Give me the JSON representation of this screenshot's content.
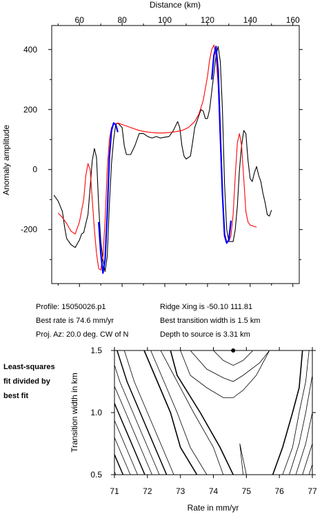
{
  "chart_data": [
    {
      "type": "line",
      "xlabel": "Distance (km)",
      "ylabel": "Anomaly amplitude",
      "xlim": [
        47,
        163
      ],
      "ylim": [
        -380,
        480
      ],
      "x_ticks": [
        60,
        80,
        100,
        120,
        140,
        160
      ],
      "y_ticks": [
        -200,
        0,
        200,
        400
      ],
      "grid": false,
      "series": [
        {
          "color": "#000000",
          "points": [
            [
              48,
              -85
            ],
            [
              50,
              -105
            ],
            [
              52,
              -140
            ],
            [
              53,
              -190
            ],
            [
              54,
              -230
            ],
            [
              56,
              -250
            ],
            [
              58,
              -260
            ],
            [
              60,
              -235
            ],
            [
              61,
              -215
            ],
            [
              62,
              -210
            ],
            [
              63,
              -180
            ],
            [
              64,
              -150
            ],
            [
              65,
              -60
            ],
            [
              66,
              30
            ],
            [
              67,
              70
            ],
            [
              68,
              40
            ],
            [
              69,
              -120
            ],
            [
              70,
              -240
            ],
            [
              71,
              -300
            ],
            [
              72,
              -340
            ],
            [
              73,
              -290
            ],
            [
              74,
              -120
            ],
            [
              75,
              20
            ],
            [
              76,
              100
            ],
            [
              77,
              150
            ],
            [
              78,
              155
            ],
            [
              80,
              140
            ],
            [
              81,
              80
            ],
            [
              82,
              50
            ],
            [
              84,
              50
            ],
            [
              86,
              80
            ],
            [
              88,
              120
            ],
            [
              90,
              120
            ],
            [
              92,
              110
            ],
            [
              94,
              105
            ],
            [
              96,
              110
            ],
            [
              98,
              105
            ],
            [
              100,
              108
            ],
            [
              102,
              110
            ],
            [
              104,
              130
            ],
            [
              106,
              160
            ],
            [
              107,
              140
            ],
            [
              108,
              80
            ],
            [
              109,
              45
            ],
            [
              110,
              35
            ],
            [
              112,
              45
            ],
            [
              113,
              90
            ],
            [
              114,
              140
            ],
            [
              116,
              180
            ],
            [
              117,
              200
            ],
            [
              118,
              195
            ],
            [
              119,
              170
            ],
            [
              120,
              170
            ],
            [
              121,
              200
            ],
            [
              122,
              260
            ],
            [
              123,
              320
            ],
            [
              124,
              380
            ],
            [
              125,
              410
            ],
            [
              126,
              360
            ],
            [
              127,
              200
            ],
            [
              128,
              -50
            ],
            [
              129,
              -200
            ],
            [
              130,
              -240
            ],
            [
              132,
              -240
            ],
            [
              133,
              -200
            ],
            [
              134,
              -120
            ],
            [
              135,
              0
            ],
            [
              136,
              80
            ],
            [
              137,
              130
            ],
            [
              138,
              120
            ],
            [
              139,
              30
            ],
            [
              140,
              -30
            ],
            [
              141,
              -40
            ],
            [
              142,
              -10
            ],
            [
              143,
              10
            ],
            [
              144,
              -20
            ],
            [
              145,
              -40
            ],
            [
              146,
              -80
            ],
            [
              147,
              -110
            ],
            [
              148,
              -150
            ],
            [
              149,
              -155
            ],
            [
              150,
              -135
            ]
          ]
        },
        {
          "color": "#ff0000",
          "points": [
            [
              50,
              -145
            ],
            [
              52,
              -160
            ],
            [
              54,
              -180
            ],
            [
              56,
              -205
            ],
            [
              58,
              -215
            ],
            [
              60,
              -175
            ],
            [
              62,
              -100
            ],
            [
              63,
              -20
            ],
            [
              64,
              20
            ],
            [
              65,
              0
            ],
            [
              66,
              -100
            ],
            [
              67,
              -200
            ],
            [
              68,
              -280
            ],
            [
              69,
              -330
            ],
            [
              70,
              -335
            ],
            [
              71,
              -290
            ],
            [
              72,
              -170
            ],
            [
              73,
              0
            ],
            [
              74,
              100
            ],
            [
              75,
              140
            ],
            [
              76,
              150
            ],
            [
              78,
              155
            ],
            [
              80,
              150
            ],
            [
              84,
              140
            ],
            [
              88,
              130
            ],
            [
              92,
              125
            ],
            [
              96,
              122
            ],
            [
              100,
              122
            ],
            [
              104,
              125
            ],
            [
              108,
              130
            ],
            [
              111,
              140
            ],
            [
              114,
              160
            ],
            [
              116,
              185
            ],
            [
              118,
              230
            ],
            [
              120,
              310
            ],
            [
              121,
              365
            ],
            [
              122,
              400
            ],
            [
              123,
              415
            ],
            [
              124,
              380
            ],
            [
              125,
              280
            ],
            [
              126,
              80
            ],
            [
              127,
              -100
            ],
            [
              128,
              -210
            ],
            [
              129,
              -240
            ],
            [
              130,
              -240
            ],
            [
              131,
              -220
            ],
            [
              132,
              -150
            ],
            [
              133,
              -20
            ],
            [
              134,
              90
            ],
            [
              135,
              120
            ],
            [
              136,
              80
            ],
            [
              137,
              -30
            ],
            [
              138,
              -140
            ],
            [
              139,
              -175
            ],
            [
              140,
              -185
            ],
            [
              142,
              -190
            ],
            [
              143,
              -192
            ]
          ]
        },
        {
          "color": "#0000ff",
          "points": [
            [
              69,
              -175
            ],
            [
              70,
              -280
            ],
            [
              71,
              -345
            ],
            [
              72,
              -300
            ],
            [
              73,
              -150
            ],
            [
              74,
              40
            ],
            [
              75,
              130
            ],
            [
              76,
              155
            ],
            [
              77,
              150
            ],
            [
              78,
              125
            ]
          ]
        },
        {
          "color": "#0000ff",
          "points": [
            [
              122,
              300
            ],
            [
              123,
              380
            ],
            [
              124,
              410
            ],
            [
              125,
              330
            ],
            [
              126,
              120
            ],
            [
              127,
              -80
            ],
            [
              128,
              -220
            ],
            [
              129,
              -245
            ],
            [
              130,
              -235
            ],
            [
              131,
              -170
            ]
          ]
        }
      ]
    },
    {
      "type": "contour",
      "xlabel": "Rate in mm/yr",
      "ylabel": "Transition width in km",
      "xlim": [
        71,
        77
      ],
      "ylim": [
        0.5,
        1.5
      ],
      "x_ticks": [
        71,
        72,
        73,
        74,
        75,
        76,
        77
      ],
      "y_ticks": [
        0.5,
        1.0,
        1.5
      ],
      "best_fit_marker": {
        "x": 74.6,
        "y": 1.5
      },
      "contours": [
        {
          "bold": true,
          "points": [
            [
              73.5,
              0.5
            ],
            [
              73.0,
              0.72
            ],
            [
              72.7,
              1.0
            ],
            [
              72.3,
              1.25
            ],
            [
              71.9,
              1.5
            ]
          ]
        },
        {
          "bold": false,
          "points": [
            [
              73.8,
              0.5
            ],
            [
              73.3,
              0.72
            ],
            [
              72.9,
              1.0
            ],
            [
              72.5,
              1.25
            ],
            [
              72.1,
              1.5
            ]
          ]
        },
        {
          "bold": true,
          "points": [
            [
              74.6,
              0.5
            ],
            [
              74.2,
              0.72
            ],
            [
              73.6,
              1.0
            ],
            [
              72.9,
              1.3
            ],
            [
              72.7,
              1.5
            ]
          ]
        },
        {
          "bold": true,
          "points": [
            [
              75.8,
              0.5
            ],
            [
              76.1,
              0.72
            ],
            [
              76.4,
              1.0
            ],
            [
              76.6,
              1.2
            ],
            [
              76.7,
              1.5
            ]
          ]
        },
        {
          "bold": false,
          "points": [
            [
              76.1,
              0.5
            ],
            [
              76.4,
              0.72
            ],
            [
              76.6,
              1.0
            ],
            [
              76.8,
              1.25
            ],
            [
              76.9,
              1.5
            ]
          ]
        },
        {
          "bold": false,
          "points": [
            [
              74.9,
              0.5
            ],
            [
              74.8,
              0.75
            ],
            [
              75.0,
              0.5
            ]
          ]
        },
        {
          "bold": false,
          "points": [
            [
              73.0,
              1.5
            ],
            [
              73.3,
              1.3
            ],
            [
              73.8,
              1.2
            ],
            [
              74.3,
              1.12
            ],
            [
              74.6,
              1.12
            ],
            [
              74.9,
              1.18
            ],
            [
              75.3,
              1.3
            ],
            [
              75.7,
              1.5
            ]
          ]
        },
        {
          "bold": false,
          "points": [
            [
              73.3,
              1.5
            ],
            [
              73.8,
              1.35
            ],
            [
              74.3,
              1.28
            ],
            [
              74.6,
              1.25
            ],
            [
              74.9,
              1.3
            ],
            [
              75.4,
              1.4
            ],
            [
              75.7,
              1.5
            ]
          ]
        },
        {
          "bold": false,
          "points": [
            [
              74.0,
              1.5
            ],
            [
              74.3,
              1.42
            ],
            [
              74.6,
              1.38
            ],
            [
              74.9,
              1.42
            ],
            [
              75.2,
              1.5
            ]
          ]
        },
        {
          "bold": false,
          "points": [
            [
              74.3,
              0.5
            ],
            [
              74.0,
              0.72
            ],
            [
              73.4,
              1.0
            ],
            [
              72.8,
              1.3
            ],
            [
              72.4,
              1.5
            ]
          ]
        }
      ]
    }
  ],
  "info": {
    "profile": "Profile: 15050026.p1",
    "best_rate": "Best rate is 74.6 mm/yr",
    "proj_az": "Proj. Az: 20.0 deg. CW of N",
    "ridge_xing": "Ridge Xing is -50.10 111.81",
    "best_width": "Best transition width is 1.5 km",
    "depth": "Depth to source is   3.31 km"
  },
  "side_note": [
    "Least-squares",
    "fit divided by",
    "best fit"
  ]
}
